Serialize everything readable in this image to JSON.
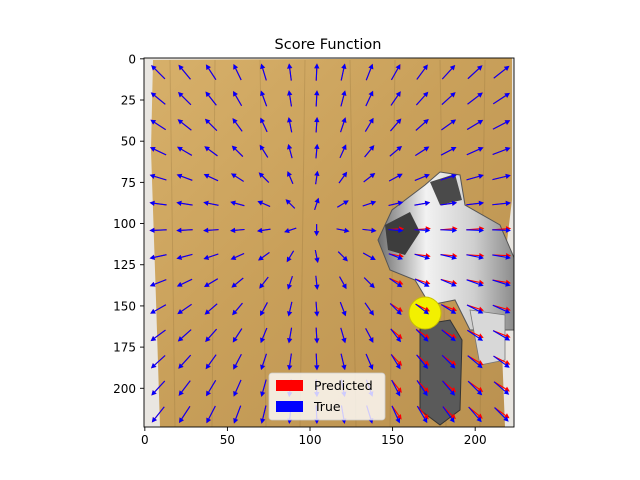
{
  "chart_data": {
    "type": "quiver",
    "title": "Score Function",
    "xlabel": "",
    "ylabel": "",
    "xlim": [
      -0.5,
      223.5
    ],
    "ylim": [
      223.5,
      -0.5
    ],
    "x_ticks": [
      0,
      50,
      100,
      150,
      200
    ],
    "y_ticks": [
      0,
      25,
      50,
      75,
      100,
      125,
      150,
      175,
      200
    ],
    "grid": false,
    "legend": {
      "placement": "lower-center",
      "entries": [
        "Predicted",
        "True"
      ]
    },
    "colors": {
      "predicted": "#ff0000",
      "true": "#0000ff"
    },
    "arrow_grid": {
      "x_start": 8,
      "x_step": 16,
      "y_start": 8,
      "y_step": 16,
      "count": 14
    },
    "series": [
      {
        "name": "Predicted",
        "note": "nearly identical to True except near the robot arm",
        "offset_scale": [
          1.0,
          1.0
        ]
      },
      {
        "name": "True"
      }
    ],
    "background": "camera image of a wooden table with a white robotic arm and a yellow ball"
  }
}
